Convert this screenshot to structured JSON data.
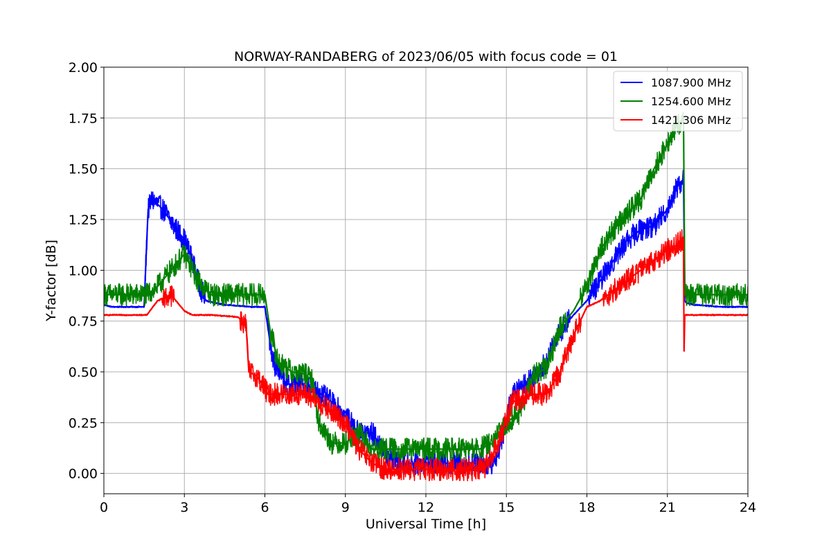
{
  "chart_data": {
    "type": "line",
    "title": "NORWAY-RANDABERG of 2023/06/05 with focus code = 01",
    "xlabel": "Universal Time [h]",
    "ylabel": "Y-factor [dB]",
    "xlim": [
      0,
      24
    ],
    "ylim": [
      -0.1,
      2.0
    ],
    "xticks": [
      0,
      3,
      6,
      9,
      12,
      15,
      18,
      21,
      24
    ],
    "xtick_labels": [
      "0",
      "3",
      "6",
      "9",
      "12",
      "15",
      "18",
      "21",
      "24"
    ],
    "yticks": [
      0.0,
      0.25,
      0.5,
      0.75,
      1.0,
      1.25,
      1.5,
      1.75,
      2.0
    ],
    "ytick_labels": [
      "0.00",
      "0.25",
      "0.50",
      "0.75",
      "1.00",
      "1.25",
      "1.50",
      "1.75",
      "2.00"
    ],
    "grid": true,
    "legend_position": "top-right",
    "series": [
      {
        "name": "1087.900 MHz",
        "color": "#0000ff",
        "noise": 0.07,
        "x": [
          0,
          0.3,
          0.4,
          1.5,
          1.6,
          1.65,
          1.8,
          2.2,
          2.6,
          3.0,
          3.3,
          3.5,
          3.8,
          4.5,
          5.5,
          6.0,
          6.3,
          6.8,
          7.3,
          7.6,
          8.0,
          8.5,
          9.0,
          9.5,
          10.0,
          10.5,
          11.0,
          12.0,
          13.0,
          14.0,
          14.5,
          14.8,
          15.2,
          15.6,
          16.0,
          16.5,
          17.0,
          17.5,
          18.0,
          18.5,
          19.0,
          19.5,
          20.0,
          20.5,
          21.0,
          21.3,
          21.6,
          21.65,
          21.7,
          22.0,
          23.0,
          24.0
        ],
        "y": [
          0.83,
          0.82,
          0.82,
          0.82,
          1.15,
          1.3,
          1.35,
          1.3,
          1.22,
          1.15,
          1.05,
          0.95,
          0.85,
          0.83,
          0.82,
          0.82,
          0.55,
          0.44,
          0.44,
          0.43,
          0.4,
          0.35,
          0.28,
          0.2,
          0.2,
          0.1,
          0.05,
          0.05,
          0.05,
          0.05,
          0.05,
          0.15,
          0.38,
          0.43,
          0.48,
          0.55,
          0.7,
          0.78,
          0.85,
          0.95,
          1.05,
          1.15,
          1.2,
          1.22,
          1.3,
          1.4,
          1.45,
          0.85,
          0.84,
          0.83,
          0.82,
          0.82
        ]
      },
      {
        "name": "1254.600 MHz",
        "color": "#008000",
        "noise": 0.07,
        "x": [
          0,
          0.5,
          1.0,
          1.5,
          1.6,
          2.0,
          2.5,
          3.0,
          3.5,
          4.0,
          5.0,
          5.5,
          6.0,
          6.2,
          6.5,
          7.0,
          7.5,
          7.8,
          8.0,
          8.5,
          9.0,
          9.5,
          10.0,
          10.5,
          11.0,
          12.0,
          13.0,
          14.0,
          14.5,
          15.0,
          15.5,
          16.0,
          16.5,
          17.0,
          17.5,
          18.0,
          18.5,
          19.0,
          19.5,
          20.0,
          20.5,
          21.0,
          21.3,
          21.6,
          21.65,
          21.7,
          22.0,
          23.0,
          24.0
        ],
        "y": [
          0.88,
          0.88,
          0.88,
          0.88,
          0.88,
          0.92,
          1.0,
          1.08,
          0.95,
          0.88,
          0.88,
          0.88,
          0.88,
          0.7,
          0.55,
          0.5,
          0.49,
          0.45,
          0.25,
          0.15,
          0.15,
          0.2,
          0.12,
          0.12,
          0.12,
          0.12,
          0.12,
          0.12,
          0.15,
          0.25,
          0.3,
          0.48,
          0.52,
          0.72,
          0.8,
          0.92,
          1.1,
          1.2,
          1.28,
          1.35,
          1.5,
          1.62,
          1.7,
          1.75,
          0.88,
          0.88,
          0.88,
          0.88,
          0.88
        ]
      },
      {
        "name": "1421.306 MHz",
        "color": "#ff0000",
        "noise": 0.07,
        "x": [
          0,
          1.0,
          1.5,
          1.6,
          2.0,
          2.5,
          3.0,
          3.3,
          4.0,
          5.0,
          5.3,
          5.4,
          5.7,
          6.0,
          6.1,
          7.0,
          7.5,
          8.0,
          8.5,
          9.0,
          9.5,
          10.0,
          10.5,
          11.0,
          12.0,
          13.0,
          14.0,
          14.3,
          14.7,
          15.2,
          16.0,
          16.5,
          17.0,
          17.5,
          18.0,
          18.5,
          19.0,
          19.5,
          20.0,
          20.5,
          21.0,
          21.3,
          21.6,
          21.62,
          21.65,
          21.7,
          22.0,
          23.0,
          24.0
        ],
        "y": [
          0.78,
          0.78,
          0.78,
          0.78,
          0.85,
          0.88,
          0.8,
          0.78,
          0.78,
          0.77,
          0.73,
          0.5,
          0.48,
          0.42,
          0.39,
          0.39,
          0.39,
          0.35,
          0.3,
          0.25,
          0.12,
          0.05,
          0.02,
          0.02,
          0.02,
          0.02,
          0.02,
          0.04,
          0.15,
          0.35,
          0.39,
          0.39,
          0.5,
          0.68,
          0.82,
          0.85,
          0.9,
          0.95,
          1.0,
          1.05,
          1.1,
          1.12,
          1.15,
          0.6,
          0.78,
          0.78,
          0.78,
          0.78,
          0.78
        ]
      }
    ]
  }
}
